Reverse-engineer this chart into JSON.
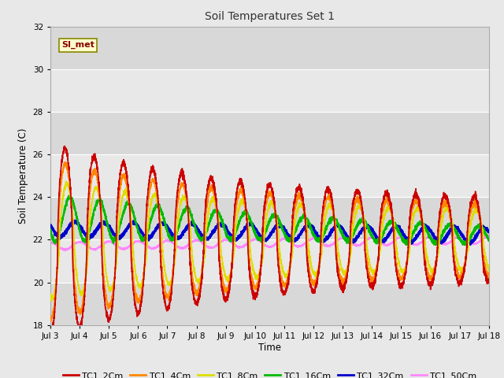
{
  "title": "Soil Temperatures Set 1",
  "ylabel": "Soil Temperature (C)",
  "xlabel": "Time",
  "annotation": "SI_met",
  "ylim": [
    18,
    32
  ],
  "xlim": [
    0,
    360
  ],
  "fig_bg": "#e8e8e8",
  "plot_bg": "#f0f0f0",
  "x_tick_labels": [
    "Jul 3",
    "Jul 4",
    "Jul 5",
    "Jul 6",
    "Jul 7",
    "Jul 8",
    "Jul 9",
    "Jul 10",
    "Jul 11",
    "Jul 12",
    "Jul 13",
    "Jul 14",
    "Jul 15",
    "Jul 16",
    "Jul 17",
    "Jul 18"
  ],
  "x_tick_positions": [
    0,
    24,
    48,
    72,
    96,
    120,
    144,
    168,
    192,
    216,
    240,
    264,
    288,
    312,
    336,
    360
  ],
  "series": {
    "TC1_2Cm": {
      "color": "#cc0000",
      "lw": 1.2
    },
    "TC1_4Cm": {
      "color": "#ff8800",
      "lw": 1.2
    },
    "TC1_8Cm": {
      "color": "#dddd00",
      "lw": 1.2
    },
    "TC1_16Cm": {
      "color": "#00bb00",
      "lw": 1.5
    },
    "TC1_32Cm": {
      "color": "#0000cc",
      "lw": 1.8
    },
    "TC1_50Cm": {
      "color": "#ff88ff",
      "lw": 1.2
    }
  },
  "figsize": [
    6.4,
    4.8
  ],
  "dpi": 100
}
